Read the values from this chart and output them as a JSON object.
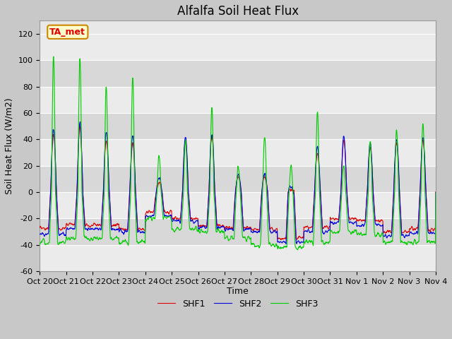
{
  "title": "Alfalfa Soil Heat Flux",
  "xlabel": "Time",
  "ylabel": "Soil Heat Flux (W/m2)",
  "ylim": [
    -60,
    130
  ],
  "yticks": [
    -60,
    -40,
    -20,
    0,
    20,
    40,
    60,
    80,
    100,
    120
  ],
  "x_tick_labels": [
    "Oct 20",
    "Oct 21",
    "Oct 22",
    "Oct 23",
    "Oct 24",
    "Oct 25",
    "Oct 26",
    "Oct 27",
    "Oct 28",
    "Oct 29",
    "Oct 30",
    "Oct 31",
    "Nov 1",
    "Nov 2",
    "Nov 3",
    "Nov 4"
  ],
  "shf1_color": "#dd0000",
  "shf2_color": "#0000dd",
  "shf3_color": "#00cc00",
  "annotation_text": "TA_met",
  "annotation_bg": "#ffffcc",
  "annotation_border": "#cc8800",
  "fig_bg": "#c8c8c8",
  "plot_bg": "#e8e8e8",
  "band_light": "#ebebeb",
  "band_dark": "#d8d8d8",
  "legend_labels": [
    "SHF1",
    "SHF2",
    "SHF3"
  ],
  "title_fontsize": 12,
  "axis_fontsize": 9,
  "tick_fontsize": 8,
  "linewidth": 0.8,
  "n_days": 15,
  "pts_per_day": 96
}
